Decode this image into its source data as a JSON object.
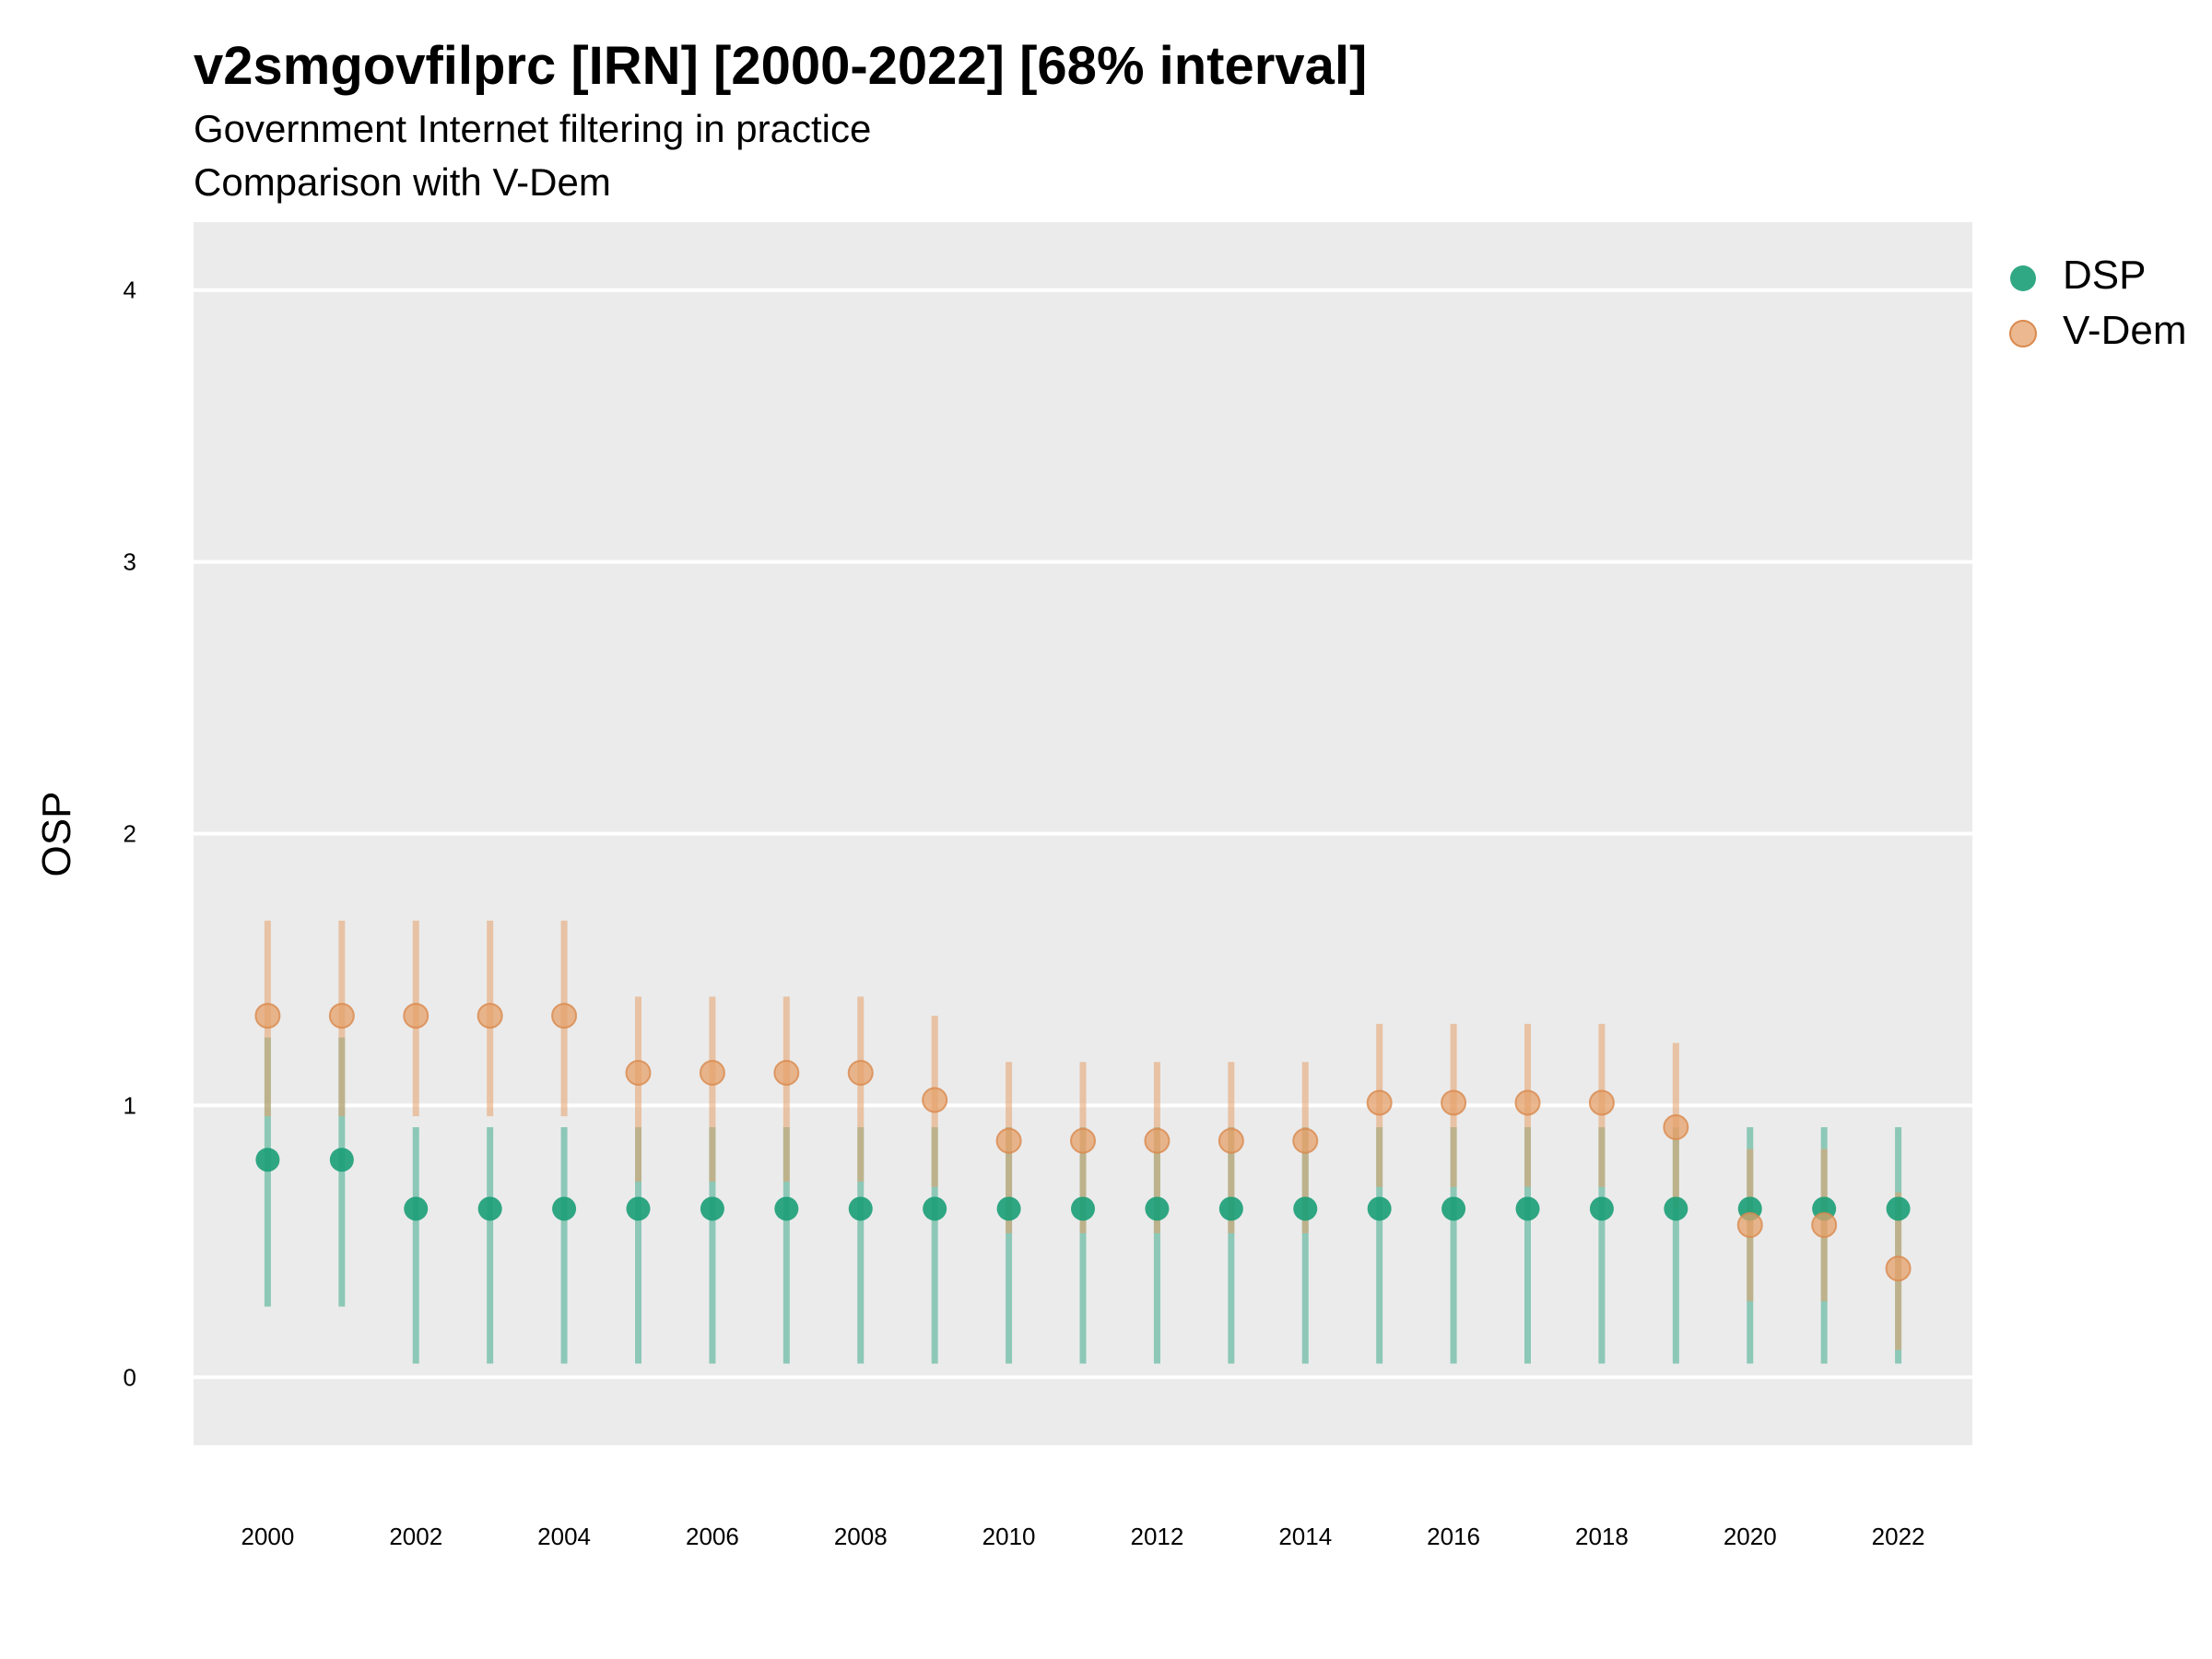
{
  "chart_data": {
    "type": "scatter",
    "title": "v2smgovfilprc [IRN] [2000-2022] [68% interval]",
    "subtitle": "Government Internet filtering in practice",
    "subtitle2": "Comparison with V-Dem",
    "ylabel": "OSP",
    "xlabel": "",
    "ylim": [
      -0.25,
      4.25
    ],
    "yticks": [
      0,
      1,
      2,
      3,
      4
    ],
    "xticks": [
      2000,
      2002,
      2004,
      2006,
      2008,
      2010,
      2012,
      2014,
      2016,
      2018,
      2020,
      2022
    ],
    "grid": true,
    "legend_position": "right",
    "x": [
      2000,
      2001,
      2002,
      2003,
      2004,
      2005,
      2006,
      2007,
      2008,
      2009,
      2010,
      2011,
      2012,
      2013,
      2014,
      2015,
      2016,
      2017,
      2018,
      2019,
      2020,
      2021,
      2022
    ],
    "series": [
      {
        "name": "DSP",
        "color": "#1b9e77",
        "values": [
          0.8,
          0.8,
          0.62,
          0.62,
          0.62,
          0.62,
          0.62,
          0.62,
          0.62,
          0.62,
          0.62,
          0.62,
          0.62,
          0.62,
          0.62,
          0.62,
          0.62,
          0.62,
          0.62,
          0.62,
          0.62,
          0.62,
          0.62
        ],
        "lower": [
          0.26,
          0.26,
          0.05,
          0.05,
          0.05,
          0.05,
          0.05,
          0.05,
          0.05,
          0.05,
          0.05,
          0.05,
          0.05,
          0.05,
          0.05,
          0.05,
          0.05,
          0.05,
          0.05,
          0.05,
          0.05,
          0.05,
          0.05
        ],
        "upper": [
          1.25,
          1.25,
          0.92,
          0.92,
          0.92,
          0.92,
          0.92,
          0.92,
          0.92,
          0.92,
          0.92,
          0.92,
          0.92,
          0.92,
          0.92,
          0.92,
          0.92,
          0.92,
          0.92,
          0.92,
          0.92,
          0.92,
          0.92
        ]
      },
      {
        "name": "V-Dem",
        "color": "#e6a06a",
        "values": [
          1.33,
          1.33,
          1.33,
          1.33,
          1.33,
          1.12,
          1.12,
          1.12,
          1.12,
          1.02,
          0.87,
          0.87,
          0.87,
          0.87,
          0.87,
          1.01,
          1.01,
          1.01,
          1.01,
          0.92,
          0.56,
          0.56,
          0.4
        ],
        "lower": [
          0.96,
          0.96,
          0.96,
          0.96,
          0.96,
          0.72,
          0.72,
          0.72,
          0.72,
          0.7,
          0.53,
          0.53,
          0.53,
          0.53,
          0.53,
          0.7,
          0.7,
          0.7,
          0.7,
          0.62,
          0.28,
          0.28,
          0.1
        ],
        "upper": [
          1.68,
          1.68,
          1.68,
          1.68,
          1.68,
          1.4,
          1.4,
          1.4,
          1.4,
          1.33,
          1.16,
          1.16,
          1.16,
          1.16,
          1.16,
          1.3,
          1.3,
          1.3,
          1.3,
          1.23,
          0.84,
          0.84,
          0.68
        ]
      }
    ]
  }
}
